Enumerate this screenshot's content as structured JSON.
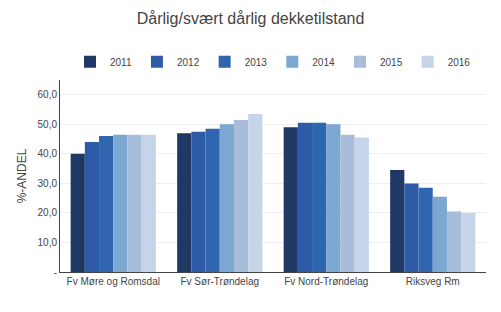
{
  "chart_data": {
    "type": "bar",
    "title": "Dårlig/svært dårlig dekketilstand",
    "ylabel": "%-ANDEL",
    "categories": [
      "Fv Møre og Romsdal",
      "Fv Sør-Trøndelag",
      "Fv Nord-Trøndelag",
      "Riksveg Rm"
    ],
    "series": [
      {
        "name": "2011",
        "color": "#1F3864",
        "values": [
          40.0,
          47.0,
          49.0,
          34.5
        ]
      },
      {
        "name": "2012",
        "color": "#2E5BA8",
        "values": [
          44.0,
          47.5,
          50.5,
          30.0
        ]
      },
      {
        "name": "2013",
        "color": "#3065AF",
        "values": [
          46.0,
          48.5,
          50.5,
          28.5
        ]
      },
      {
        "name": "2014",
        "color": "#7BA7D0",
        "values": [
          46.5,
          50.0,
          50.0,
          25.5
        ]
      },
      {
        "name": "2015",
        "color": "#A8BDD9",
        "values": [
          46.5,
          51.5,
          46.5,
          20.5
        ]
      },
      {
        "name": "2016",
        "color": "#C5D4E8",
        "values": [
          46.5,
          53.5,
          45.5,
          20.0
        ]
      }
    ],
    "ylim": [
      0,
      65
    ],
    "yticks": [
      {
        "value": 0,
        "label": "-"
      },
      {
        "value": 10,
        "label": "10,0"
      },
      {
        "value": 20,
        "label": "20,0"
      },
      {
        "value": 30,
        "label": "30,0"
      },
      {
        "value": 40,
        "label": "40,0"
      },
      {
        "value": 50,
        "label": "50,0"
      },
      {
        "value": 60,
        "label": "60,0"
      }
    ],
    "grid": true,
    "legend": "top"
  }
}
